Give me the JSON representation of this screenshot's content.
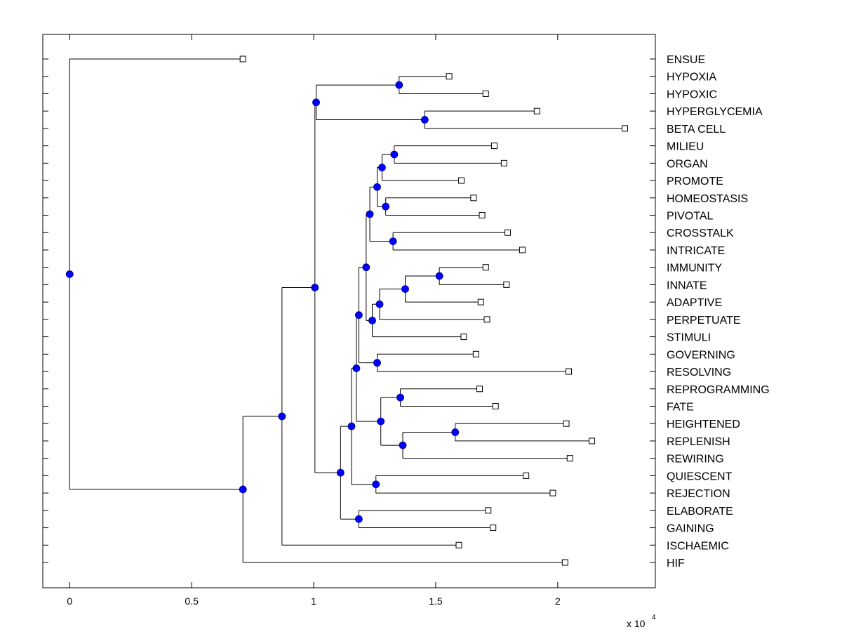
{
  "chart_data": {
    "type": "dendrogram",
    "title": "",
    "xlabel": "",
    "ylabel": "",
    "x_scale_label": "x 10",
    "x_scale_exponent": "4",
    "xlim": [
      -0.11,
      2.4
    ],
    "x_ticks": [
      {
        "value": 0,
        "label": "0"
      },
      {
        "value": 0.5,
        "label": "0.5"
      },
      {
        "value": 1,
        "label": "1"
      },
      {
        "value": 1.5,
        "label": "1.5"
      },
      {
        "value": 2,
        "label": "2"
      }
    ],
    "colors": {
      "line": "#000000",
      "internal_node_fill": "#0000ff",
      "leaf_fill": "#ffffff"
    },
    "leaves": [
      {
        "label": "ENSUE",
        "x": 0.71
      },
      {
        "label": "HYPOXIA",
        "x": 1.555
      },
      {
        "label": "HYPOXIC",
        "x": 1.705
      },
      {
        "label": "HYPERGLYCEMIA",
        "x": 1.915
      },
      {
        "label": "BETA CELL",
        "x": 2.275
      },
      {
        "label": "MILIEU",
        "x": 1.74
      },
      {
        "label": "ORGAN",
        "x": 1.78
      },
      {
        "label": "PROMOTE",
        "x": 1.605
      },
      {
        "label": "HOMEOSTASIS",
        "x": 1.655
      },
      {
        "label": "PIVOTAL",
        "x": 1.69
      },
      {
        "label": "CROSSTALK",
        "x": 1.795
      },
      {
        "label": "INTRICATE",
        "x": 1.855
      },
      {
        "label": "IMMUNITY",
        "x": 1.705
      },
      {
        "label": "INNATE",
        "x": 1.79
      },
      {
        "label": "ADAPTIVE",
        "x": 1.685
      },
      {
        "label": "PERPETUATE",
        "x": 1.71
      },
      {
        "label": "STIMULI",
        "x": 1.615
      },
      {
        "label": "GOVERNING",
        "x": 1.665
      },
      {
        "label": "RESOLVING",
        "x": 2.045
      },
      {
        "label": "REPROGRAMMING",
        "x": 1.68
      },
      {
        "label": "FATE",
        "x": 1.745
      },
      {
        "label": "HEIGHTENED",
        "x": 2.035
      },
      {
        "label": "REPLENISH",
        "x": 2.14
      },
      {
        "label": "REWIRING",
        "x": 2.05
      },
      {
        "label": "QUIESCENT",
        "x": 1.87
      },
      {
        "label": "REJECTION",
        "x": 1.98
      },
      {
        "label": "ELABORATE",
        "x": 1.715
      },
      {
        "label": "GAINING",
        "x": 1.735
      },
      {
        "label": "ISCHAEMIC",
        "x": 1.595
      },
      {
        "label": "HIF",
        "x": 2.03
      }
    ],
    "nodes": [
      {
        "id": "n_hyp",
        "x": 1.35,
        "children": [
          "HYPOXIA",
          "HYPOXIC"
        ]
      },
      {
        "id": "n_beta",
        "x": 1.455,
        "children": [
          "HYPERGLYCEMIA",
          "BETA CELL"
        ]
      },
      {
        "id": "n_hypgrp",
        "x": 1.01,
        "children": [
          "n_hyp",
          "n_beta"
        ]
      },
      {
        "id": "n_milieu",
        "x": 1.33,
        "children": [
          "MILIEU",
          "ORGAN"
        ]
      },
      {
        "id": "n_milieu2",
        "x": 1.28,
        "children": [
          "n_milieu",
          "PROMOTE"
        ]
      },
      {
        "id": "n_homeo",
        "x": 1.295,
        "children": [
          "HOMEOSTASIS",
          "PIVOTAL"
        ]
      },
      {
        "id": "n_mp",
        "x": 1.26,
        "children": [
          "n_milieu2",
          "n_homeo"
        ]
      },
      {
        "id": "n_cross",
        "x": 1.325,
        "children": [
          "CROSSTALK",
          "INTRICATE"
        ]
      },
      {
        "id": "n_mpc",
        "x": 1.23,
        "children": [
          "n_mp",
          "n_cross"
        ]
      },
      {
        "id": "n_immune",
        "x": 1.515,
        "children": [
          "IMMUNITY",
          "INNATE"
        ]
      },
      {
        "id": "n_immune2",
        "x": 1.375,
        "children": [
          "n_immune",
          "ADAPTIVE"
        ]
      },
      {
        "id": "n_immune3",
        "x": 1.27,
        "children": [
          "n_immune2",
          "PERPETUATE"
        ]
      },
      {
        "id": "n_immune4",
        "x": 1.24,
        "children": [
          "n_immune3",
          "STIMULI"
        ]
      },
      {
        "id": "n_core",
        "x": 1.215,
        "children": [
          "n_mpc",
          "n_immune4"
        ]
      },
      {
        "id": "n_gov",
        "x": 1.26,
        "children": [
          "GOVERNING",
          "RESOLVING"
        ]
      },
      {
        "id": "n_core2",
        "x": 1.185,
        "children": [
          "n_core",
          "n_gov"
        ]
      },
      {
        "id": "n_fate",
        "x": 1.355,
        "children": [
          "REPROGRAMMING",
          "FATE"
        ]
      },
      {
        "id": "n_height",
        "x": 1.58,
        "children": [
          "HEIGHTENED",
          "REPLENISH"
        ]
      },
      {
        "id": "n_height2",
        "x": 1.365,
        "children": [
          "n_height",
          "REWIRING"
        ]
      },
      {
        "id": "n_fate2",
        "x": 1.275,
        "children": [
          "n_fate",
          "n_height2"
        ]
      },
      {
        "id": "n_core3",
        "x": 1.175,
        "children": [
          "n_core2",
          "n_fate2"
        ]
      },
      {
        "id": "n_quies",
        "x": 1.255,
        "children": [
          "QUIESCENT",
          "REJECTION"
        ]
      },
      {
        "id": "n_core4",
        "x": 1.155,
        "children": [
          "n_core3",
          "n_quies"
        ]
      },
      {
        "id": "n_elab",
        "x": 1.185,
        "children": [
          "ELABORATE",
          "GAINING"
        ]
      },
      {
        "id": "n_core5",
        "x": 1.11,
        "children": [
          "n_core4",
          "n_elab"
        ]
      },
      {
        "id": "n_main",
        "x": 1.005,
        "children": [
          "n_hypgrp",
          "n_core5"
        ]
      },
      {
        "id": "n_isch",
        "x": 0.87,
        "children": [
          "n_main",
          "ISCHAEMIC"
        ]
      },
      {
        "id": "n_hif",
        "x": 0.71,
        "children": [
          "n_isch",
          "HIF"
        ]
      },
      {
        "id": "n_root",
        "x": 0.0,
        "children": [
          "ENSUE",
          "n_hif"
        ]
      }
    ]
  }
}
